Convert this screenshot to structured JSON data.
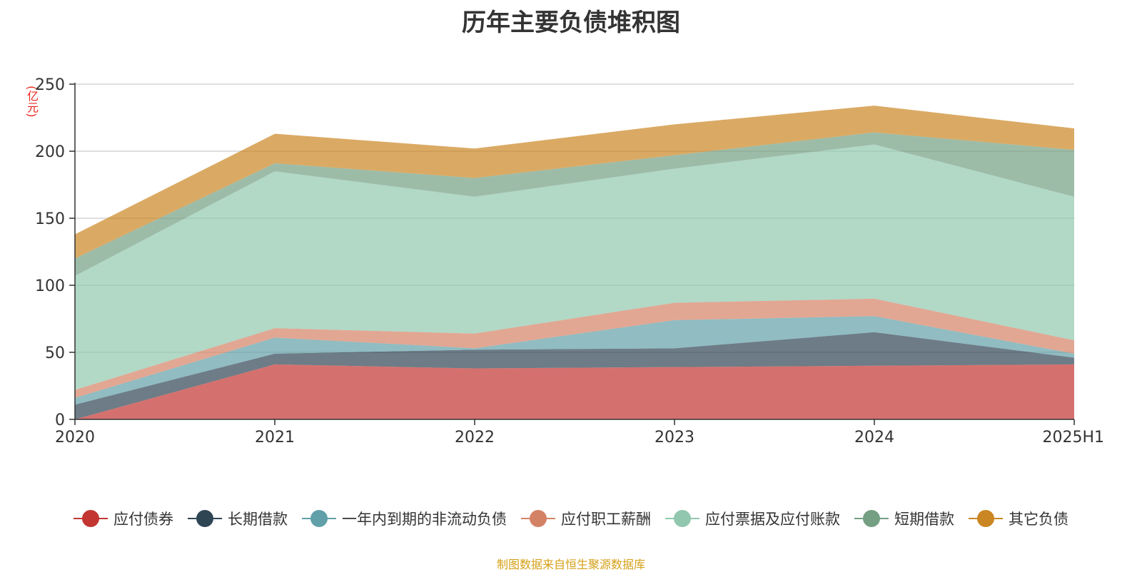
{
  "title": "历年主要负债堆积图",
  "unit": "(亿元)",
  "source_note": "制图数据来自恒生聚源数据库",
  "chart_data": {
    "type": "area",
    "stacked": true,
    "title": "历年主要负债堆积图",
    "ylabel": "(亿元)",
    "x": [
      "2020",
      "2021",
      "2022",
      "2023",
      "2024",
      "2025H1"
    ],
    "ylim": [
      0,
      250
    ],
    "yticks": [
      0,
      50,
      100,
      150,
      200,
      250
    ],
    "grid": true,
    "legend_position": "bottom",
    "series": [
      {
        "name": "应付债券",
        "color": "#c23531",
        "values": [
          0,
          41,
          38,
          39,
          40,
          41
        ]
      },
      {
        "name": "长期借款",
        "color": "#2f4554",
        "values": [
          11,
          8,
          14,
          14,
          25,
          5
        ]
      },
      {
        "name": "一年内到期的非流动负债",
        "color": "#61a0a8",
        "values": [
          5,
          12,
          1,
          21,
          12,
          3
        ]
      },
      {
        "name": "应付职工薪酬",
        "color": "#d48265",
        "values": [
          6,
          7,
          11,
          13,
          13,
          10
        ]
      },
      {
        "name": "应付票据及应付账款",
        "color": "#91c7ae",
        "values": [
          85,
          117,
          102,
          100,
          115,
          107
        ]
      },
      {
        "name": "短期借款",
        "color": "#749f83",
        "values": [
          13,
          6,
          14,
          10,
          9,
          35
        ]
      },
      {
        "name": "其它负债",
        "color": "#ca8622",
        "values": [
          18,
          22,
          22,
          23,
          20,
          16
        ]
      }
    ]
  }
}
